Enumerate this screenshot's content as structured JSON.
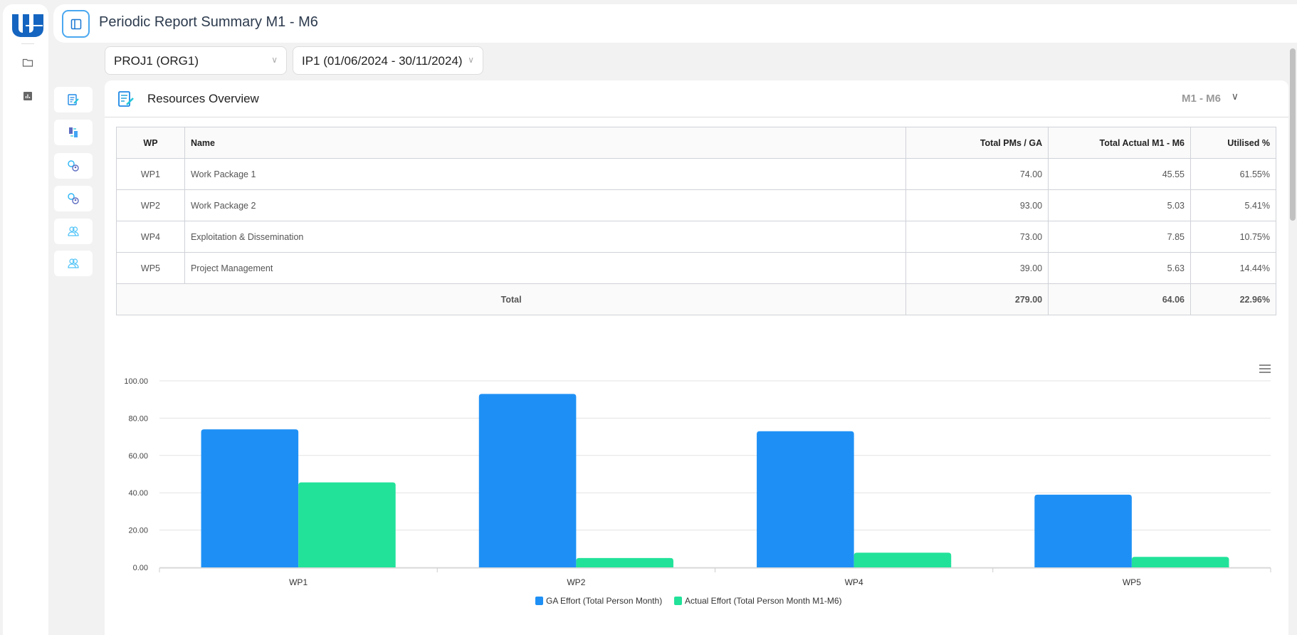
{
  "header": {
    "title": "Periodic Report Summary M1 - M6"
  },
  "filters": {
    "project": "PROJ1 (ORG1)",
    "period": "IP1 (01/06/2024 - 30/11/2024)"
  },
  "rail": {
    "icons": [
      "folder-icon",
      "bar-chart-icon"
    ]
  },
  "side_buttons": [
    "report-edit-icon",
    "transfer-icon",
    "user-settings-icon",
    "user-settings-icon",
    "users-icon",
    "users-icon"
  ],
  "card": {
    "title": "Resources Overview",
    "period": "M1 - M6"
  },
  "table": {
    "headers": [
      "WP",
      "Name",
      "Total PMs / GA",
      "Total Actual M1 - M6",
      "Utilised %"
    ],
    "rows": [
      [
        "WP1",
        "Work Package 1",
        "74.00",
        "45.55",
        "61.55%"
      ],
      [
        "WP2",
        "Work Package 2",
        "93.00",
        "5.03",
        "5.41%"
      ],
      [
        "WP4",
        "Exploitation & Dissemination",
        "73.00",
        "7.85",
        "10.75%"
      ],
      [
        "WP5",
        "Project Management",
        "39.00",
        "5.63",
        "14.44%"
      ]
    ],
    "total": {
      "label": "Total",
      "pms": "279.00",
      "actual": "64.06",
      "utilised": "22.96%"
    }
  },
  "chart_data": {
    "type": "bar",
    "categories": [
      "WP1",
      "WP2",
      "WP4",
      "WP5"
    ],
    "series": [
      {
        "name": "GA Effort (Total Person Month)",
        "values": [
          74,
          93,
          73,
          39
        ],
        "color": "#1e90f5"
      },
      {
        "name": "Actual Effort (Total Person Month M1-M6)",
        "values": [
          45.55,
          5.03,
          7.85,
          5.63
        ],
        "color": "#22e29a"
      }
    ],
    "yticks": [
      "0.00",
      "20.00",
      "40.00",
      "60.00",
      "80.00",
      "100.00"
    ],
    "ylim": [
      0,
      100
    ],
    "grid": true,
    "legend": "bottom"
  }
}
